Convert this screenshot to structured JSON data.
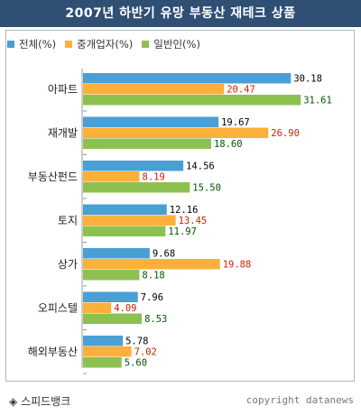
{
  "title": "2007년 하반기 유망 부동산 재테크 상품",
  "footer": {
    "source_icon": "diamond-icon",
    "source_mark": "◈",
    "source": "스피드뱅크",
    "copyright": "copyright datanews"
  },
  "colors": {
    "title_bg": "#2f4f74",
    "series": [
      "#4a9fd5",
      "#fbb03b",
      "#8cc152"
    ],
    "value_label": [
      "#000000",
      "#cc2200",
      "#005500"
    ]
  },
  "chart_data": {
    "type": "bar",
    "orientation": "horizontal",
    "categories": [
      "아파트",
      "재개발",
      "부동산펀드",
      "토지",
      "상가",
      "오피스텔",
      "해외부동산"
    ],
    "series": [
      {
        "name": "전체(%)",
        "values": [
          30.18,
          19.67,
          14.56,
          12.16,
          9.68,
          7.96,
          5.78
        ],
        "labels": [
          "30.18",
          "19.67",
          "14.56",
          "12.16",
          "9.68",
          "7.96",
          "5.78"
        ]
      },
      {
        "name": "중개업자(%)",
        "values": [
          20.47,
          26.9,
          8.19,
          13.45,
          19.88,
          4.09,
          7.02
        ],
        "labels": [
          "20.47",
          "26.90",
          "8.19",
          "13.45",
          "19.88",
          "4.09",
          "7.02"
        ]
      },
      {
        "name": "일반인(%)",
        "values": [
          31.61,
          18.6,
          15.5,
          11.97,
          8.18,
          8.53,
          5.6
        ],
        "labels": [
          "31.61",
          "18.60",
          "15.50",
          "11.97",
          "8.18",
          "8.53",
          "5.60"
        ]
      }
    ],
    "xlim": [
      0,
      38
    ],
    "legend_position": "top-left",
    "grid": false
  }
}
